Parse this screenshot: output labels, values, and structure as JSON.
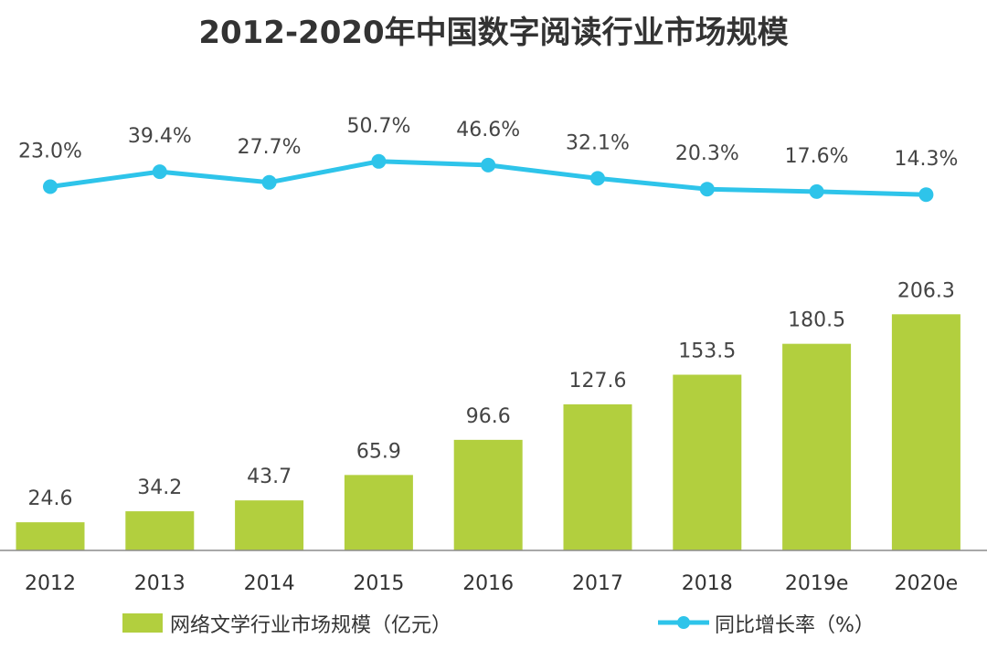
{
  "chart_data": {
    "type": "bar+line",
    "title": "2012-2020年中国数字阅读行业市场规模",
    "categories": [
      "2012",
      "2013",
      "2014",
      "2015",
      "2016",
      "2017",
      "2018",
      "2019e",
      "2020e"
    ],
    "series": [
      {
        "name": "网络文学行业市场规模（亿元）",
        "type": "bar",
        "values": [
          24.6,
          34.2,
          43.7,
          65.9,
          96.6,
          127.6,
          153.5,
          180.5,
          206.3
        ],
        "labels": [
          "24.6",
          "34.2",
          "43.7",
          "65.9",
          "96.6",
          "127.6",
          "153.5",
          "180.5",
          "206.3"
        ],
        "color": "#b2cf3e"
      },
      {
        "name": "同比增长率（%）",
        "type": "line",
        "values": [
          23.0,
          39.4,
          27.7,
          50.7,
          46.6,
          32.1,
          20.3,
          17.6,
          14.3
        ],
        "labels": [
          "23.0%",
          "39.4%",
          "27.7%",
          "50.7%",
          "46.6%",
          "32.1%",
          "20.3%",
          "17.6%",
          "14.3%"
        ],
        "color": "#2ec4ea"
      }
    ],
    "legend": {
      "position": "bottom"
    },
    "grid": false,
    "colors": {
      "axis": "#8c8c8c",
      "text": "#333333"
    }
  }
}
